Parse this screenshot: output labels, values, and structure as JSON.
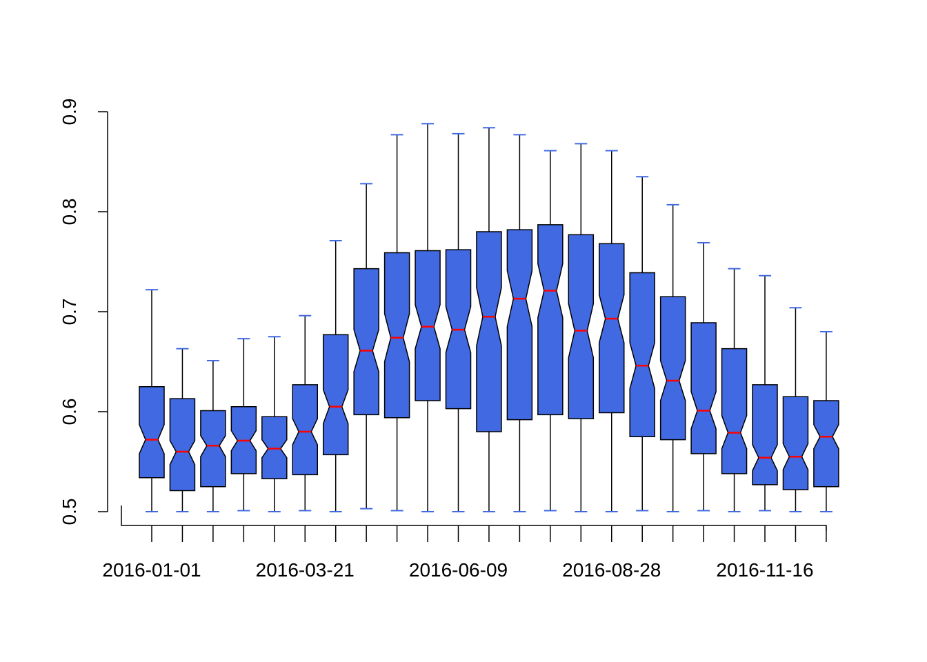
{
  "chart_data": {
    "type": "boxplot",
    "notched": true,
    "title": "",
    "xlabel": "",
    "ylabel": "",
    "ylim": [
      0.5,
      0.9
    ],
    "yticks": [
      0.5,
      0.6,
      0.7,
      0.8,
      0.9
    ],
    "ytick_labels": [
      "0.5",
      "0.6",
      "0.7",
      "0.8",
      "0.9"
    ],
    "xtick_labels_shown": [
      "2016-01-01",
      "2016-03-21",
      "2016-06-09",
      "2016-08-28",
      "2016-11-16"
    ],
    "xtick_label_every": 5,
    "grid": false,
    "legend": "none",
    "colors": {
      "box_fill": "#4169E1",
      "median": "#FF0000",
      "whisker_cap": "#4169E1",
      "outline": "#000000"
    },
    "boxes": [
      {
        "low": 0.5,
        "q1": 0.534,
        "median": 0.572,
        "q3": 0.625,
        "high": 0.722,
        "notch_lo": 0.558,
        "notch_hi": 0.587
      },
      {
        "low": 0.5,
        "q1": 0.521,
        "median": 0.56,
        "q3": 0.613,
        "high": 0.663,
        "notch_lo": 0.547,
        "notch_hi": 0.571
      },
      {
        "low": 0.5,
        "q1": 0.525,
        "median": 0.566,
        "q3": 0.601,
        "high": 0.651,
        "notch_lo": 0.555,
        "notch_hi": 0.576
      },
      {
        "low": 0.501,
        "q1": 0.538,
        "median": 0.571,
        "q3": 0.605,
        "high": 0.673,
        "notch_lo": 0.561,
        "notch_hi": 0.581
      },
      {
        "low": 0.5,
        "q1": 0.533,
        "median": 0.563,
        "q3": 0.595,
        "high": 0.675,
        "notch_lo": 0.554,
        "notch_hi": 0.572
      },
      {
        "low": 0.501,
        "q1": 0.537,
        "median": 0.58,
        "q3": 0.627,
        "high": 0.696,
        "notch_lo": 0.567,
        "notch_hi": 0.593
      },
      {
        "low": 0.5,
        "q1": 0.557,
        "median": 0.605,
        "q3": 0.677,
        "high": 0.771,
        "notch_lo": 0.588,
        "notch_hi": 0.622
      },
      {
        "low": 0.503,
        "q1": 0.597,
        "median": 0.661,
        "q3": 0.743,
        "high": 0.828,
        "notch_lo": 0.64,
        "notch_hi": 0.682
      },
      {
        "low": 0.501,
        "q1": 0.594,
        "median": 0.674,
        "q3": 0.759,
        "high": 0.877,
        "notch_lo": 0.65,
        "notch_hi": 0.698
      },
      {
        "low": 0.5,
        "q1": 0.611,
        "median": 0.685,
        "q3": 0.761,
        "high": 0.888,
        "notch_lo": 0.663,
        "notch_hi": 0.707
      },
      {
        "low": 0.5,
        "q1": 0.603,
        "median": 0.682,
        "q3": 0.762,
        "high": 0.878,
        "notch_lo": 0.659,
        "notch_hi": 0.705
      },
      {
        "low": 0.5,
        "q1": 0.58,
        "median": 0.695,
        "q3": 0.78,
        "high": 0.884,
        "notch_lo": 0.666,
        "notch_hi": 0.724
      },
      {
        "low": 0.5,
        "q1": 0.592,
        "median": 0.713,
        "q3": 0.782,
        "high": 0.877,
        "notch_lo": 0.685,
        "notch_hi": 0.741
      },
      {
        "low": 0.501,
        "q1": 0.597,
        "median": 0.721,
        "q3": 0.787,
        "high": 0.861,
        "notch_lo": 0.694,
        "notch_hi": 0.748
      },
      {
        "low": 0.5,
        "q1": 0.593,
        "median": 0.681,
        "q3": 0.777,
        "high": 0.868,
        "notch_lo": 0.654,
        "notch_hi": 0.708
      },
      {
        "low": 0.5,
        "q1": 0.599,
        "median": 0.693,
        "q3": 0.768,
        "high": 0.861,
        "notch_lo": 0.669,
        "notch_hi": 0.717
      },
      {
        "low": 0.501,
        "q1": 0.575,
        "median": 0.646,
        "q3": 0.739,
        "high": 0.835,
        "notch_lo": 0.623,
        "notch_hi": 0.669
      },
      {
        "low": 0.5,
        "q1": 0.572,
        "median": 0.631,
        "q3": 0.715,
        "high": 0.807,
        "notch_lo": 0.611,
        "notch_hi": 0.651
      },
      {
        "low": 0.501,
        "q1": 0.558,
        "median": 0.601,
        "q3": 0.689,
        "high": 0.769,
        "notch_lo": 0.583,
        "notch_hi": 0.62
      },
      {
        "low": 0.5,
        "q1": 0.538,
        "median": 0.579,
        "q3": 0.663,
        "high": 0.743,
        "notch_lo": 0.563,
        "notch_hi": 0.596
      },
      {
        "low": 0.501,
        "q1": 0.527,
        "median": 0.554,
        "q3": 0.627,
        "high": 0.736,
        "notch_lo": 0.541,
        "notch_hi": 0.567
      },
      {
        "low": 0.5,
        "q1": 0.522,
        "median": 0.555,
        "q3": 0.615,
        "high": 0.704,
        "notch_lo": 0.542,
        "notch_hi": 0.568
      },
      {
        "low": 0.5,
        "q1": 0.525,
        "median": 0.575,
        "q3": 0.611,
        "high": 0.68,
        "notch_lo": 0.563,
        "notch_hi": 0.587
      }
    ]
  }
}
